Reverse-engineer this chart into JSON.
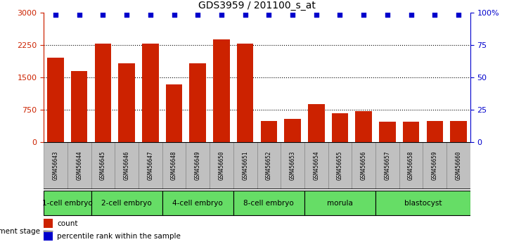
{
  "title": "GDS3959 / 201100_s_at",
  "samples": [
    "GSM456643",
    "GSM456644",
    "GSM456645",
    "GSM456646",
    "GSM456647",
    "GSM456648",
    "GSM456649",
    "GSM456650",
    "GSM456651",
    "GSM456652",
    "GSM456653",
    "GSM456654",
    "GSM456655",
    "GSM456656",
    "GSM456657",
    "GSM456658",
    "GSM456659",
    "GSM456660"
  ],
  "counts": [
    1950,
    1650,
    2280,
    1820,
    2270,
    1340,
    1820,
    2380,
    2270,
    490,
    530,
    870,
    660,
    710,
    470,
    470,
    490,
    490
  ],
  "percentile_ranks": [
    98,
    98,
    98,
    98,
    98,
    98,
    98,
    98,
    98,
    98,
    98,
    98,
    98,
    98,
    98,
    98,
    98,
    98
  ],
  "stages": [
    {
      "label": "1-cell embryo",
      "start": 0,
      "end": 2
    },
    {
      "label": "2-cell embryo",
      "start": 2,
      "end": 5
    },
    {
      "label": "4-cell embryo",
      "start": 5,
      "end": 8
    },
    {
      "label": "8-cell embryo",
      "start": 8,
      "end": 11
    },
    {
      "label": "morula",
      "start": 11,
      "end": 14
    },
    {
      "label": "blastocyst",
      "start": 14,
      "end": 18
    }
  ],
  "bar_color": "#CC2200",
  "dot_color": "#0000CC",
  "ylim_left": [
    0,
    3000
  ],
  "ylim_right": [
    0,
    100
  ],
  "yticks_left": [
    0,
    750,
    1500,
    2250,
    3000
  ],
  "yticks_right": [
    0,
    25,
    50,
    75,
    100
  ],
  "stage_bg": "#66DD66",
  "sample_bg": "#C0C0C0",
  "grid_lines": [
    750,
    1500,
    2250
  ]
}
